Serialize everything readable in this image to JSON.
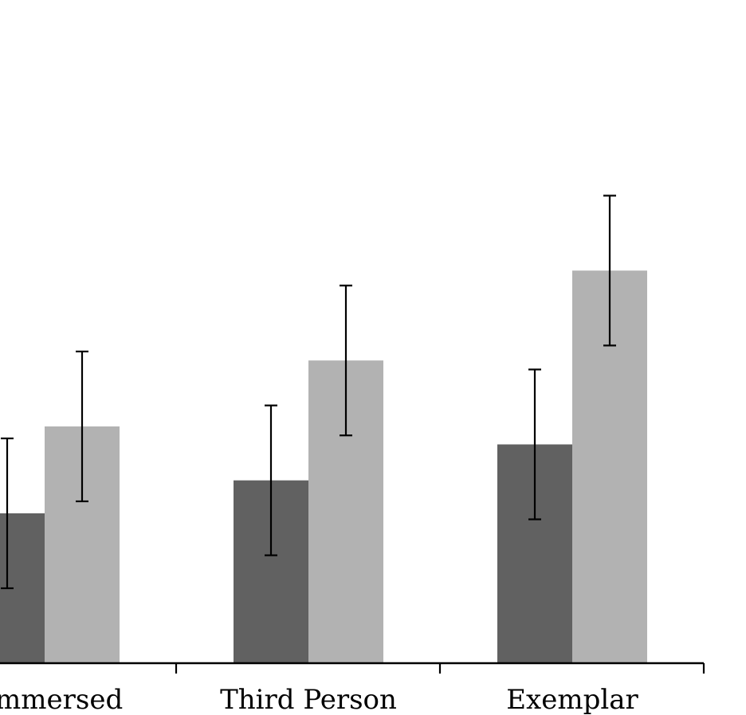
{
  "chart_data": {
    "type": "bar",
    "categories": [
      "f-Immersed",
      "Third Person",
      "Exemplar"
    ],
    "series": [
      {
        "values": [
          1.0,
          1.22,
          1.46
        ],
        "errors": [
          0.5,
          0.5,
          0.5
        ],
        "color": "#616161"
      },
      {
        "values": [
          1.58,
          2.02,
          2.62
        ],
        "errors": [
          0.5,
          0.5,
          0.5
        ],
        "color": "#b2b2b2"
      }
    ],
    "ylim": [
      0,
      4.6
    ],
    "grid": false,
    "axis_color": "#000000"
  }
}
